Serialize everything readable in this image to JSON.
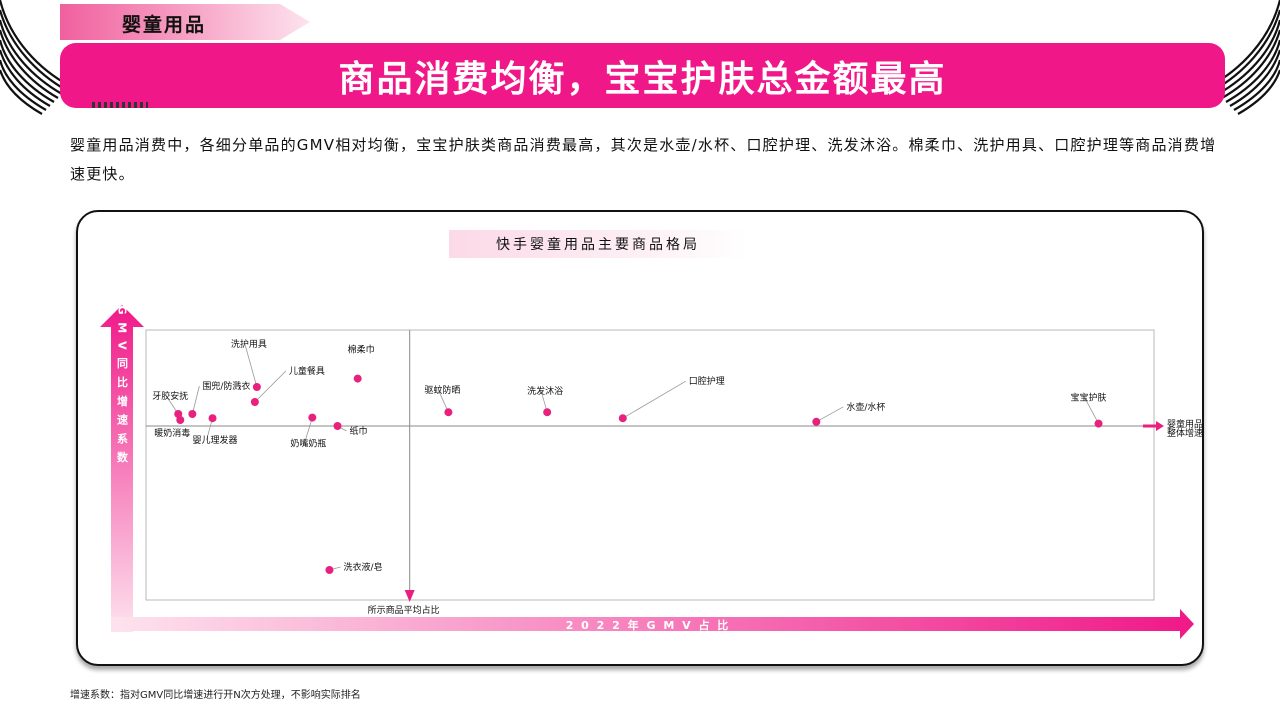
{
  "section_tab": "婴童用品",
  "headline": "商品消费均衡，宝宝护肤总金额最高",
  "summary": "婴童用品消费中，各细分单品的GMV相对均衡，宝宝护肤类商品消费最高，其次是水壶/水杯、口腔护理、洗发沐浴。棉柔巾、洗护用具、口腔护理等商品消费增速更快。",
  "footnote": "增速系数：指对GMV同比增速进行开N次方处理，不影响实际排名",
  "colors": {
    "accent": "#f01888",
    "point": "#e8207e",
    "grid": "#b8b8b8"
  },
  "chart_data": {
    "type": "scatter",
    "title": "快手婴童用品主要商品格局",
    "xlabel": "2 0 2 2 年 G M V 占 比",
    "ylabel": "G M V 同 比 增 速 系 数",
    "reference_lines": {
      "vertical_label": "所示商品平均占比",
      "horizontal_label_line1": "婴童用品",
      "horizontal_label_line2": "整体增速"
    },
    "points": [
      {
        "name": "牙胶安抚",
        "x": 3.2,
        "y": 6.0
      },
      {
        "name": "围兜/防溅衣",
        "x": 4.6,
        "y": 6.0
      },
      {
        "name": "暖奶消毒",
        "x": 3.4,
        "y": 5.0
      },
      {
        "name": "婴儿理发器",
        "x": 6.6,
        "y": 5.3
      },
      {
        "name": "洗护用具",
        "x": 11.0,
        "y": 10.5
      },
      {
        "name": "儿童餐具",
        "x": 10.8,
        "y": 8.0
      },
      {
        "name": "棉柔巾",
        "x": 21.0,
        "y": 11.9
      },
      {
        "name": "纸巾",
        "x": 19.0,
        "y": 4.0
      },
      {
        "name": "奶嘴奶瓶",
        "x": 16.5,
        "y": 5.4
      },
      {
        "name": "洗衣液/皂",
        "x": 18.2,
        "y": -20.0
      },
      {
        "name": "驱蚊防晒",
        "x": 30.0,
        "y": 6.3
      },
      {
        "name": "洗发沐浴",
        "x": 39.8,
        "y": 6.3
      },
      {
        "name": "口腔护理",
        "x": 47.3,
        "y": 5.3
      },
      {
        "name": "水壶/水杯",
        "x": 66.5,
        "y": 4.7
      },
      {
        "name": "宝宝护肤",
        "x": 94.5,
        "y": 4.4
      }
    ]
  }
}
